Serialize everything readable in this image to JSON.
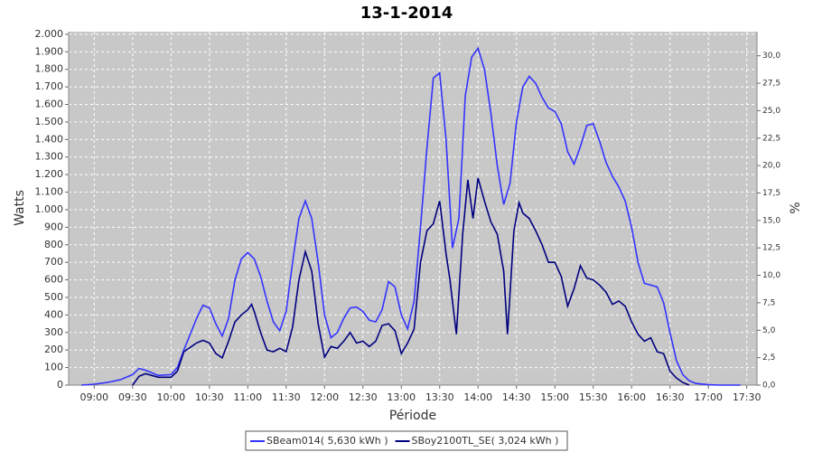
{
  "chart_data": {
    "type": "line",
    "title": "13-1-2014",
    "x_label": "Période",
    "y_label": "Watts",
    "y2_label": "%",
    "xlim": [
      "08:40",
      "17:38"
    ],
    "xticks": [
      "09:00",
      "09:30",
      "10:00",
      "10:30",
      "11:00",
      "11:30",
      "12:00",
      "12:30",
      "13:00",
      "13:30",
      "14:00",
      "14:30",
      "15:00",
      "15:30",
      "16:00",
      "16:30",
      "17:00",
      "17:30"
    ],
    "ylim": [
      0,
      2015
    ],
    "yticks": [
      0,
      100,
      200,
      300,
      400,
      500,
      600,
      700,
      800,
      900,
      {
        "value": 1000,
        "label": "1.000"
      },
      {
        "value": 1100,
        "label": "1.100"
      },
      {
        "value": 1200,
        "label": "1.200"
      },
      {
        "value": 1300,
        "label": "1.300"
      },
      {
        "value": 1400,
        "label": "1.400"
      },
      {
        "value": 1500,
        "label": "1.500"
      },
      {
        "value": 1600,
        "label": "1.600"
      },
      {
        "value": 1700,
        "label": "1.700"
      },
      {
        "value": 1800,
        "label": "1.800"
      },
      {
        "value": 1900,
        "label": "1.900"
      },
      {
        "value": 2000,
        "label": "2.000"
      }
    ],
    "y2lim": [
      0,
      32.2
    ],
    "y2ticks": [
      {
        "value": 0,
        "label": "0,0"
      },
      {
        "value": 2.5,
        "label": "2,5"
      },
      {
        "value": 5,
        "label": "5,0"
      },
      {
        "value": 7.5,
        "label": "7,5"
      },
      {
        "value": 10,
        "label": "10,0"
      },
      {
        "value": 12.5,
        "label": "12,5"
      },
      {
        "value": 15,
        "label": "15,0"
      },
      {
        "value": 17.5,
        "label": "17,5"
      },
      {
        "value": 20,
        "label": "20,0"
      },
      {
        "value": 22.5,
        "label": "22,5"
      },
      {
        "value": 25,
        "label": "25,0"
      },
      {
        "value": 27.5,
        "label": "27,5"
      },
      {
        "value": 30,
        "label": "30,0"
      }
    ],
    "grid": true,
    "legend": "bottom",
    "series": [
      {
        "name": "SBeam014( 5,630 kWh )",
        "color": "#3333ff",
        "x": [
          "08:50",
          "09:00",
          "09:10",
          "09:20",
          "09:30",
          "09:35",
          "09:40",
          "09:50",
          "10:00",
          "10:05",
          "10:10",
          "10:20",
          "10:25",
          "10:30",
          "10:35",
          "10:40",
          "10:45",
          "10:50",
          "10:55",
          "11:00",
          "11:05",
          "11:10",
          "11:15",
          "11:20",
          "11:25",
          "11:30",
          "11:35",
          "11:40",
          "11:45",
          "11:50",
          "11:55",
          "12:00",
          "12:05",
          "12:10",
          "12:15",
          "12:20",
          "12:25",
          "12:30",
          "12:35",
          "12:40",
          "12:45",
          "12:50",
          "12:55",
          "13:00",
          "13:05",
          "13:10",
          "13:15",
          "13:20",
          "13:25",
          "13:30",
          "13:35",
          "13:40",
          "13:45",
          "13:50",
          "13:55",
          "14:00",
          "14:05",
          "14:10",
          "14:15",
          "14:20",
          "14:25",
          "14:30",
          "14:35",
          "14:40",
          "14:45",
          "14:50",
          "14:55",
          "15:00",
          "15:05",
          "15:10",
          "15:15",
          "15:20",
          "15:25",
          "15:30",
          "15:35",
          "15:40",
          "15:45",
          "15:50",
          "15:55",
          "16:00",
          "16:05",
          "16:10",
          "16:15",
          "16:20",
          "16:25",
          "16:30",
          "16:35",
          "16:40",
          "16:45",
          "16:50",
          "17:00",
          "17:10",
          "17:25"
        ],
        "values": [
          0,
          5,
          15,
          30,
          60,
          95,
          85,
          55,
          60,
          100,
          200,
          380,
          455,
          440,
          350,
          280,
          380,
          600,
          720,
          755,
          720,
          620,
          480,
          360,
          310,
          420,
          700,
          950,
          1050,
          950,
          700,
          400,
          270,
          300,
          380,
          440,
          445,
          420,
          370,
          360,
          430,
          590,
          560,
          400,
          320,
          480,
          900,
          1350,
          1750,
          1780,
          1400,
          780,
          950,
          1650,
          1870,
          1920,
          1800,
          1550,
          1250,
          1030,
          1150,
          1500,
          1700,
          1760,
          1720,
          1640,
          1580,
          1560,
          1490,
          1330,
          1260,
          1360,
          1480,
          1490,
          1390,
          1270,
          1190,
          1130,
          1050,
          900,
          700,
          580,
          570,
          560,
          470,
          300,
          140,
          60,
          25,
          10,
          2,
          0,
          0
        ]
      },
      {
        "name": "SBoy2100TL_SE( 3,024 kWh )",
        "color": "#000080",
        "x": [
          "09:30",
          "09:35",
          "09:40",
          "09:50",
          "10:00",
          "10:05",
          "10:10",
          "10:20",
          "10:25",
          "10:30",
          "10:35",
          "10:40",
          "10:45",
          "10:50",
          "10:55",
          "11:00",
          "11:03",
          "11:05",
          "11:10",
          "11:15",
          "11:20",
          "11:25",
          "11:30",
          "11:35",
          "11:40",
          "11:45",
          "11:50",
          "11:55",
          "12:00",
          "12:05",
          "12:10",
          "12:15",
          "12:20",
          "12:25",
          "12:30",
          "12:35",
          "12:40",
          "12:45",
          "12:50",
          "12:55",
          "13:00",
          "13:05",
          "13:10",
          "13:15",
          "13:20",
          "13:25",
          "13:30",
          "13:35",
          "13:38",
          "13:43",
          "13:48",
          "13:52",
          "13:56",
          "14:00",
          "14:05",
          "14:10",
          "14:15",
          "14:20",
          "14:23",
          "14:28",
          "14:32",
          "14:35",
          "14:40",
          "14:45",
          "14:50",
          "14:55",
          "15:00",
          "15:05",
          "15:10",
          "15:15",
          "15:20",
          "15:25",
          "15:30",
          "15:35",
          "15:40",
          "15:45",
          "15:50",
          "15:55",
          "16:00",
          "16:05",
          "16:10",
          "16:15",
          "16:20",
          "16:25",
          "16:30",
          "16:35",
          "16:40",
          "16:45"
        ],
        "values": [
          0,
          50,
          65,
          45,
          45,
          80,
          190,
          240,
          255,
          240,
          180,
          155,
          250,
          360,
          400,
          430,
          460,
          420,
          300,
          200,
          190,
          210,
          190,
          330,
          600,
          760,
          650,
          350,
          160,
          220,
          210,
          250,
          300,
          240,
          250,
          220,
          250,
          340,
          350,
          310,
          180,
          240,
          320,
          700,
          880,
          920,
          1050,
          750,
          600,
          290,
          860,
          1170,
          950,
          1180,
          1050,
          930,
          860,
          650,
          290,
          880,
          1040,
          980,
          950,
          880,
          800,
          700,
          700,
          620,
          450,
          550,
          680,
          610,
          600,
          570,
          530,
          460,
          480,
          450,
          360,
          290,
          250,
          270,
          190,
          180,
          80,
          40,
          15,
          0
        ]
      }
    ]
  }
}
